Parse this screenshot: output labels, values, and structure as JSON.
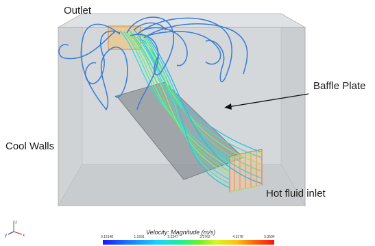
{
  "labels": {
    "outlet": "Outlet",
    "baffle_plate": "Baffle Plate",
    "cool_walls": "Cool Walls",
    "hot_fluid_inlet": "Hot fluid inlet"
  },
  "colorbar": {
    "title": "Velocity: Magnitude (m/s)",
    "ticks": [
      "0.15148",
      "1.1931",
      "2.2347",
      "3.2762",
      "4.3178",
      "5.3594"
    ]
  },
  "axes": {
    "x": "x",
    "y": "y",
    "z": "z"
  },
  "colors": {
    "box_fill": "#cfd3d6",
    "streamline_blue": "#3b7fd6",
    "streamline_green": "#5fe08a",
    "inlet_orange": "#ff9a3c"
  }
}
